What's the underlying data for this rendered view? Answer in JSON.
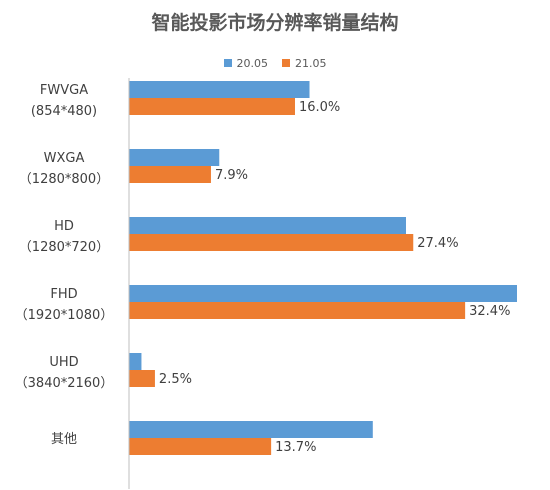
{
  "chart_data": {
    "type": "bar",
    "orientation": "horizontal",
    "title": "智能投影市场分辨率销量结构",
    "categories": [
      [
        "FWVGA",
        "(854*480)"
      ],
      [
        "WXGA",
        "（1280*800）"
      ],
      [
        "HD",
        "（1280*720）"
      ],
      [
        "FHD",
        "（1920*1080）"
      ],
      [
        "UHD",
        "（3840*2160）"
      ],
      [
        "其他"
      ]
    ],
    "series": [
      {
        "name": "20.05",
        "color": "#5b9bd5",
        "values": [
          17.4,
          8.7,
          26.7,
          37.4,
          1.2,
          23.5
        ]
      },
      {
        "name": "21.05",
        "color": "#ed7d31",
        "values": [
          16.0,
          7.9,
          27.4,
          32.4,
          2.5,
          13.7
        ]
      }
    ],
    "data_labels": [
      "16.0%",
      "7.9%",
      "27.4%",
      "32.4%",
      "2.5%",
      "13.7%"
    ],
    "xlim": [
      0,
      37.4
    ],
    "legend_position": "top",
    "grid": false
  }
}
